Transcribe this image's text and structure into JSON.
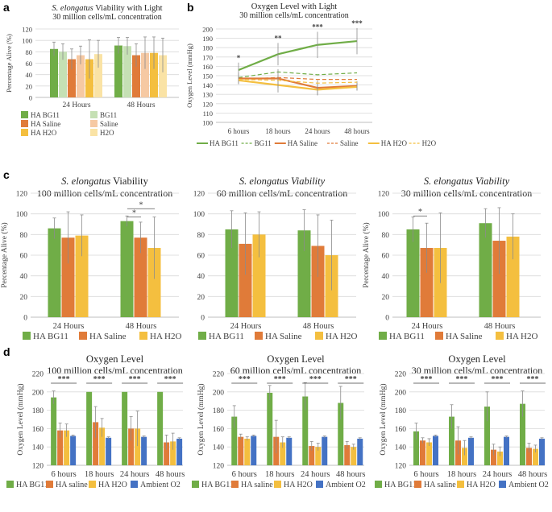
{
  "colors": {
    "green": "#70ad47",
    "orange": "#e07b39",
    "yellow": "#f4bf3f",
    "blue": "#4472c4",
    "green_light": "#c5e0b4",
    "orange_light": "#f6c9a3",
    "yellow_light": "#fae3a5",
    "grid": "#d9d9d9",
    "err": "#8c8c8c",
    "text": "#404040"
  },
  "chart_data": [
    {
      "id": "a",
      "panel_label": "a",
      "type": "bar",
      "title_italic": "S. elongatus",
      "title_rest": " Viability with Light",
      "subtitle": "30 million cells/mL concentration",
      "ylabel": "Percentage Alive (%)",
      "xlabel": "",
      "ylim": [
        0,
        120
      ],
      "yticks": [
        0,
        20,
        40,
        60,
        80,
        100,
        120
      ],
      "categories": [
        "24 Hours",
        "48 Hours"
      ],
      "series": [
        {
          "name": "HA BG11",
          "color": "green",
          "values": [
            85,
            91
          ],
          "err": [
            12,
            14
          ]
        },
        {
          "name": "BG11",
          "color": "green_light",
          "values": [
            80,
            90
          ],
          "err": [
            14,
            15
          ]
        },
        {
          "name": "HA Saline",
          "color": "orange",
          "values": [
            67,
            74
          ],
          "err": [
            18,
            20
          ]
        },
        {
          "name": "Saline",
          "color": "orange_light",
          "values": [
            74,
            78
          ],
          "err": [
            16,
            28
          ]
        },
        {
          "name": "HA H2O",
          "color": "yellow",
          "values": [
            67,
            78
          ],
          "err": [
            34,
            28
          ]
        },
        {
          "name": "H2O",
          "color": "yellow_light",
          "values": [
            76,
            74
          ],
          "err": [
            24,
            30
          ]
        }
      ]
    },
    {
      "id": "b",
      "panel_label": "b",
      "type": "line",
      "title": "Oxygen Level with Light",
      "subtitle": "30 million cells/mL concentration",
      "ylabel": "Oxygen Level (mmHg)",
      "xlabel": "",
      "ylim": [
        100,
        200
      ],
      "yticks": [
        100,
        110,
        120,
        130,
        140,
        150,
        160,
        170,
        180,
        190,
        200
      ],
      "categories": [
        "6 hours",
        "18 hours",
        "24 hours",
        "48 hours"
      ],
      "significance": [
        "*",
        "**",
        "***",
        "***"
      ],
      "series": [
        {
          "name": "HA BG11",
          "color": "green",
          "dashed": false,
          "values": [
            156,
            173,
            183,
            187
          ],
          "err": [
            8,
            12,
            14,
            14
          ]
        },
        {
          "name": "BG11",
          "color": "green",
          "dashed": true,
          "values": [
            148,
            154,
            151,
            153
          ],
          "err": [
            0,
            0,
            0,
            0
          ]
        },
        {
          "name": "HA Saline",
          "color": "orange",
          "dashed": false,
          "values": [
            147,
            147,
            137,
            139
          ],
          "err": [
            6,
            10,
            8,
            5
          ]
        },
        {
          "name": "Saline",
          "color": "orange",
          "dashed": true,
          "values": [
            146,
            148,
            146,
            146
          ],
          "err": [
            0,
            0,
            0,
            0
          ]
        },
        {
          "name": "HA H2O",
          "color": "yellow",
          "dashed": false,
          "values": [
            145,
            140,
            135,
            138
          ],
          "err": [
            4,
            8,
            6,
            4
          ]
        },
        {
          "name": "H2O",
          "color": "yellow",
          "dashed": true,
          "values": [
            146,
            145,
            142,
            143
          ],
          "err": [
            0,
            0,
            0,
            0
          ]
        }
      ]
    },
    {
      "id": "c1",
      "panel_label": "c",
      "type": "bar",
      "title_italic": "S. elongatus",
      "title_rest": " Viability",
      "subtitle": "100 million cells/mL concentration",
      "ylabel": "Percentage Alive (%)",
      "xlabel": "",
      "ylim": [
        0,
        120
      ],
      "yticks": [
        0,
        20,
        40,
        60,
        80,
        100,
        120
      ],
      "categories": [
        "24 Hours",
        "48 Hours"
      ],
      "significance_brackets": [
        {
          "category": 1,
          "from": 0,
          "to": 2,
          "label": "*",
          "y": 105
        },
        {
          "category": 1,
          "from": 0,
          "to": 1,
          "label": "*",
          "y": 97
        }
      ],
      "series": [
        {
          "name": "HA BG11",
          "color": "green",
          "values": [
            86,
            93
          ],
          "err": [
            10,
            5
          ]
        },
        {
          "name": "HA Saline",
          "color": "orange",
          "values": [
            77,
            77
          ],
          "err": [
            25,
            15
          ]
        },
        {
          "name": "HA H2O",
          "color": "yellow",
          "values": [
            79,
            67
          ],
          "err": [
            20,
            30
          ]
        }
      ]
    },
    {
      "id": "c2",
      "panel_label": "",
      "type": "bar",
      "title_italic": "S. elongatus Viability",
      "title_rest": "",
      "subtitle": "60 million cells/mL concentration",
      "ylabel": "",
      "xlabel": "",
      "ylim": [
        0,
        120
      ],
      "yticks": [
        0,
        20,
        40,
        60,
        80,
        100,
        120
      ],
      "categories": [
        "24 Hours",
        "48 Hours"
      ],
      "series": [
        {
          "name": "HA BG11",
          "color": "green",
          "values": [
            85,
            84
          ],
          "err": [
            18,
            20
          ]
        },
        {
          "name": "HA Saline",
          "color": "orange",
          "values": [
            71,
            69
          ],
          "err": [
            30,
            30
          ]
        },
        {
          "name": "HA H2O",
          "color": "yellow",
          "values": [
            80,
            60
          ],
          "err": [
            22,
            34
          ]
        }
      ]
    },
    {
      "id": "c3",
      "panel_label": "",
      "type": "bar",
      "title_italic": "S. elongatus Viability",
      "title_rest": "",
      "subtitle": "30 million cells/mL concentration",
      "ylabel": "Percentage Alive (%)",
      "xlabel": "",
      "ylim": [
        0,
        120
      ],
      "yticks": [
        0,
        20,
        40,
        60,
        80,
        100,
        120
      ],
      "categories": [
        "24 Hours",
        "48 Hours"
      ],
      "significance_brackets": [
        {
          "category": 0,
          "from": 0,
          "to": 1,
          "label": "*",
          "y": 98
        }
      ],
      "series": [
        {
          "name": "HA BG11",
          "color": "green",
          "values": [
            85,
            91
          ],
          "err": [
            12,
            14
          ]
        },
        {
          "name": "HA Saline",
          "color": "orange",
          "values": [
            67,
            74
          ],
          "err": [
            24,
            32
          ]
        },
        {
          "name": "HA H2O",
          "color": "yellow",
          "values": [
            67,
            78
          ],
          "err": [
            34,
            22
          ]
        }
      ]
    },
    {
      "id": "d1",
      "panel_label": "d",
      "type": "bar",
      "title": "Oxygen Level",
      "subtitle": "100 million cells/mL concentration",
      "ylabel": "Oxygen Level (mmHg)",
      "xlabel": "",
      "ylim": [
        120,
        220
      ],
      "yticks": [
        120,
        140,
        160,
        180,
        200,
        220
      ],
      "categories": [
        "6 hours",
        "18 hours",
        "24 hours",
        "48 hours"
      ],
      "brackets_all": "***",
      "series": [
        {
          "name": "HA BG11",
          "color": "green",
          "values": [
            194,
            200,
            200,
            200
          ],
          "err": [
            7,
            0,
            0,
            0
          ]
        },
        {
          "name": "HA saline",
          "color": "orange",
          "values": [
            158,
            167,
            160,
            145
          ],
          "err": [
            8,
            17,
            13,
            8
          ]
        },
        {
          "name": "HA H2O",
          "color": "yellow",
          "values": [
            158,
            161,
            160,
            146
          ],
          "err": [
            7,
            10,
            19,
            9
          ]
        },
        {
          "name": "Ambient O2",
          "color": "blue",
          "values": [
            152,
            150,
            151,
            149
          ],
          "err": [
            1,
            1,
            1,
            1
          ]
        }
      ]
    },
    {
      "id": "d2",
      "panel_label": "",
      "type": "bar",
      "title": "Oxygen Level",
      "subtitle": "60 million cells/mL concentration",
      "ylabel": "Oxygen Level (mmHg)",
      "xlabel": "",
      "ylim": [
        120,
        220
      ],
      "yticks": [
        120,
        140,
        160,
        180,
        200,
        220
      ],
      "categories": [
        "6 hours",
        "18 hours",
        "24 hours",
        "48 hours"
      ],
      "brackets_all": "***",
      "series": [
        {
          "name": "HA BG11",
          "color": "green",
          "values": [
            173,
            199,
            195,
            188
          ],
          "err": [
            12,
            8,
            15,
            18
          ]
        },
        {
          "name": "HA saline",
          "color": "orange",
          "values": [
            151,
            151,
            141,
            142
          ],
          "err": [
            3,
            18,
            5,
            4
          ]
        },
        {
          "name": "HA H2O",
          "color": "yellow",
          "values": [
            149,
            145,
            140,
            140
          ],
          "err": [
            2,
            6,
            4,
            3
          ]
        },
        {
          "name": "Ambient O2",
          "color": "blue",
          "values": [
            152,
            150,
            151,
            149
          ],
          "err": [
            1,
            1,
            1,
            1
          ]
        }
      ]
    },
    {
      "id": "d3",
      "panel_label": "",
      "type": "bar",
      "title": "Oxygen Level",
      "subtitle": "30 million cells/mL concentration",
      "ylabel": "Oxygen Level (mmHg)",
      "xlabel": "",
      "ylim": [
        120,
        220
      ],
      "yticks": [
        120,
        140,
        160,
        180,
        200,
        220
      ],
      "categories": [
        "6 hours",
        "18 hours",
        "24 hours",
        "48 hours"
      ],
      "brackets_all": "***",
      "series": [
        {
          "name": "HA BG11",
          "color": "green",
          "values": [
            157,
            173,
            184,
            187
          ],
          "err": [
            9,
            13,
            16,
            14
          ]
        },
        {
          "name": "HA saline",
          "color": "orange",
          "values": [
            147,
            147,
            137,
            139
          ],
          "err": [
            3,
            15,
            6,
            5
          ]
        },
        {
          "name": "HA H2O",
          "color": "yellow",
          "values": [
            145,
            139,
            135,
            138
          ],
          "err": [
            4,
            8,
            5,
            4
          ]
        },
        {
          "name": "Ambient O2",
          "color": "blue",
          "values": [
            152,
            150,
            151,
            149
          ],
          "err": [
            1,
            1,
            1,
            1
          ]
        }
      ]
    }
  ]
}
